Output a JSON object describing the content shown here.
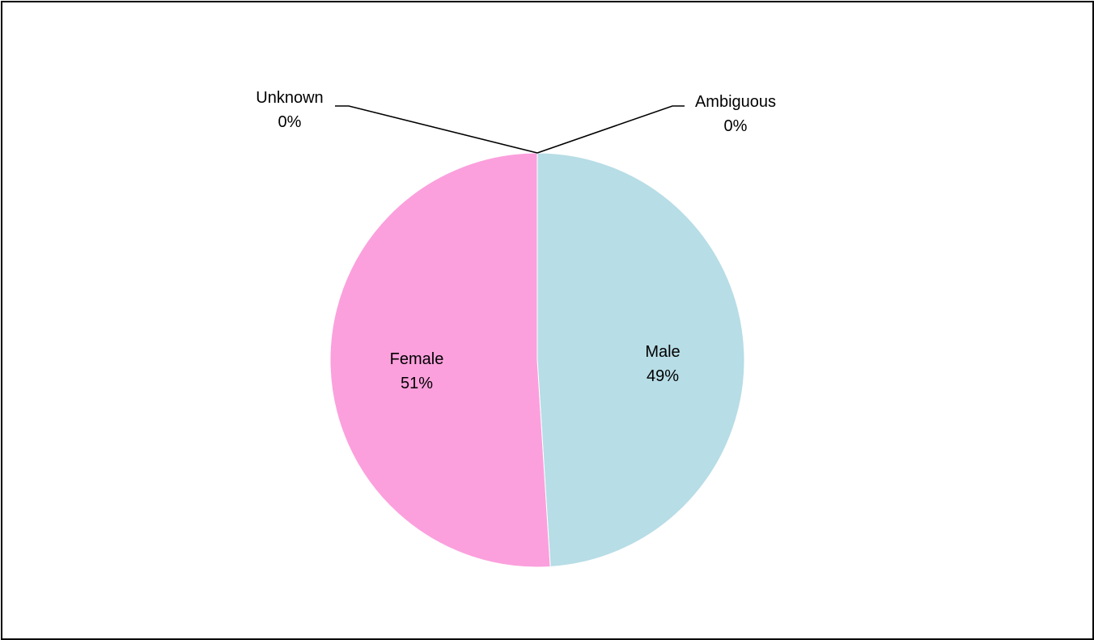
{
  "chart_data": {
    "type": "pie",
    "title": "",
    "slices": [
      {
        "name": "Male",
        "value": 49,
        "label": "49%",
        "color": "#b7dde6"
      },
      {
        "name": "Ambiguous",
        "value": 0,
        "label": "0%",
        "color": "#ffffff"
      },
      {
        "name": "Unknown",
        "value": 0,
        "label": "0%",
        "color": "#ffffff"
      },
      {
        "name": "Female",
        "value": 51,
        "label": "51%",
        "color": "#fba0dd"
      }
    ],
    "label_placement": "inside-large, outside-with-leaders-small",
    "legend": "none"
  }
}
